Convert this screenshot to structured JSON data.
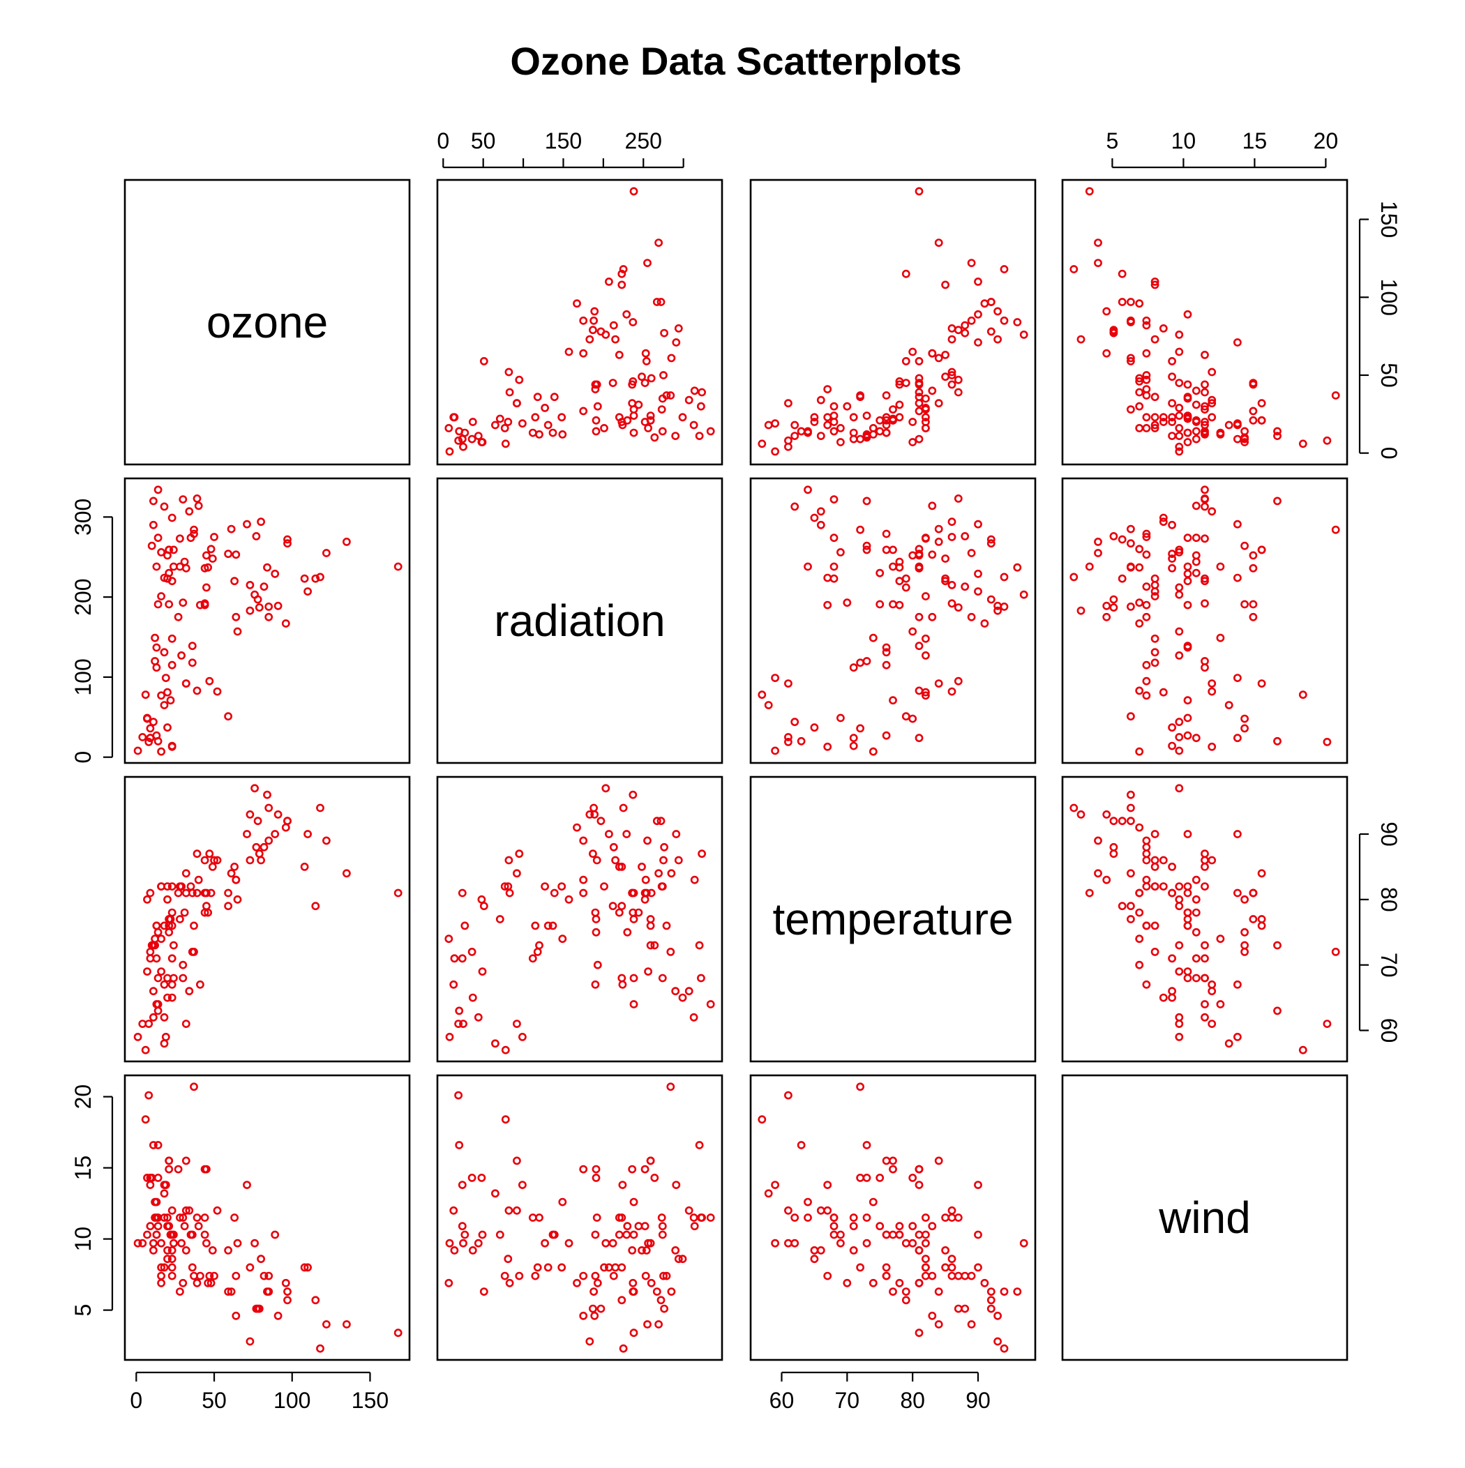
{
  "chart_data": {
    "type": "scatter",
    "title": "Ozone Data Scatterplots",
    "point_color": "#e8000b",
    "marker": "open-circle",
    "variables": [
      {
        "name": "ozone",
        "range": [
          0,
          168
        ],
        "ticks": [
          0,
          50,
          100,
          150
        ],
        "tick_labels": [
          "0",
          "50",
          "100",
          "150"
        ]
      },
      {
        "name": "radiation",
        "range": [
          7,
          334
        ],
        "ticks": [
          0,
          50,
          100,
          150,
          200,
          250,
          300
        ],
        "tick_labels": [
          "0",
          "50",
          "",
          "150",
          "",
          "250",
          ""
        ],
        "tick_labels_left": [
          "0",
          "100",
          "200",
          "300"
        ],
        "tick_values_left": [
          0,
          100,
          200,
          300
        ]
      },
      {
        "name": "temperature",
        "range": [
          57,
          97
        ],
        "ticks": [
          60,
          70,
          80,
          90
        ],
        "tick_labels": [
          "60",
          "70",
          "80",
          "90"
        ]
      },
      {
        "name": "wind",
        "range": [
          2.3,
          20.7
        ],
        "ticks": [
          5,
          10,
          15,
          20
        ],
        "tick_labels": [
          "5",
          "10",
          "15",
          "20"
        ]
      }
    ],
    "series": [
      {
        "columns": [
          "ozone",
          "radiation",
          "temperature",
          "wind"
        ],
        "rows": [
          [
            41,
            190,
            67,
            7.4
          ],
          [
            36,
            118,
            72,
            8.0
          ],
          [
            12,
            149,
            74,
            12.6
          ],
          [
            18,
            313,
            62,
            11.5
          ],
          [
            23,
            299,
            65,
            8.6
          ],
          [
            19,
            99,
            59,
            13.8
          ],
          [
            8,
            19,
            61,
            20.1
          ],
          [
            16,
            256,
            69,
            9.7
          ],
          [
            11,
            290,
            66,
            9.2
          ],
          [
            14,
            274,
            68,
            10.9
          ],
          [
            18,
            65,
            58,
            13.2
          ],
          [
            14,
            334,
            64,
            11.5
          ],
          [
            34,
            307,
            66,
            12.0
          ],
          [
            6,
            78,
            57,
            18.4
          ],
          [
            30,
            322,
            68,
            11.5
          ],
          [
            11,
            44,
            62,
            9.7
          ],
          [
            1,
            8,
            59,
            9.7
          ],
          [
            11,
            320,
            73,
            16.6
          ],
          [
            4,
            25,
            61,
            9.7
          ],
          [
            32,
            92,
            61,
            12.0
          ],
          [
            23,
            13,
            67,
            12.0
          ],
          [
            45,
            252,
            81,
            14.9
          ],
          [
            115,
            223,
            79,
            5.7
          ],
          [
            37,
            279,
            76,
            7.4
          ],
          [
            29,
            127,
            82,
            9.7
          ],
          [
            71,
            291,
            90,
            13.8
          ],
          [
            39,
            323,
            87,
            11.5
          ],
          [
            23,
            148,
            82,
            8.0
          ],
          [
            21,
            191,
            77,
            14.9
          ],
          [
            37,
            284,
            72,
            20.7
          ],
          [
            20,
            37,
            65,
            9.2
          ],
          [
            12,
            120,
            73,
            11.5
          ],
          [
            13,
            137,
            76,
            10.3
          ],
          [
            135,
            269,
            84,
            4.0
          ],
          [
            49,
            248,
            85,
            9.2
          ],
          [
            32,
            236,
            81,
            9.2
          ],
          [
            64,
            175,
            83,
            4.6
          ],
          [
            40,
            314,
            83,
            10.9
          ],
          [
            77,
            276,
            88,
            5.1
          ],
          [
            97,
            267,
            92,
            6.3
          ],
          [
            97,
            272,
            92,
            5.7
          ],
          [
            85,
            175,
            89,
            7.4
          ],
          [
            10,
            264,
            73,
            14.3
          ],
          [
            27,
            175,
            81,
            14.9
          ],
          [
            7,
            48,
            80,
            14.3
          ],
          [
            48,
            260,
            81,
            6.9
          ],
          [
            35,
            274,
            82,
            10.3
          ],
          [
            61,
            285,
            84,
            6.3
          ],
          [
            79,
            187,
            87,
            5.1
          ],
          [
            63,
            220,
            85,
            11.5
          ],
          [
            16,
            7,
            74,
            6.9
          ],
          [
            80,
            294,
            86,
            8.6
          ],
          [
            108,
            223,
            85,
            8.0
          ],
          [
            20,
            81,
            82,
            8.6
          ],
          [
            52,
            82,
            86,
            12.0
          ],
          [
            82,
            213,
            88,
            7.4
          ],
          [
            50,
            275,
            86,
            7.4
          ],
          [
            64,
            253,
            83,
            7.4
          ],
          [
            59,
            254,
            81,
            9.2
          ],
          [
            39,
            83,
            81,
            6.9
          ],
          [
            9,
            24,
            81,
            13.8
          ],
          [
            16,
            77,
            82,
            7.4
          ],
          [
            122,
            255,
            89,
            4.0
          ],
          [
            89,
            229,
            90,
            10.3
          ],
          [
            110,
            207,
            90,
            8.0
          ],
          [
            44,
            192,
            86,
            11.5
          ],
          [
            28,
            273,
            82,
            11.5
          ],
          [
            65,
            157,
            80,
            9.7
          ],
          [
            22,
            71,
            77,
            10.3
          ],
          [
            59,
            51,
            79,
            6.3
          ],
          [
            23,
            115,
            76,
            7.4
          ],
          [
            31,
            244,
            78,
            10.9
          ],
          [
            44,
            190,
            78,
            10.3
          ],
          [
            21,
            259,
            77,
            15.5
          ],
          [
            9,
            36,
            72,
            14.3
          ],
          [
            45,
            212,
            79,
            9.7
          ],
          [
            168,
            238,
            81,
            3.4
          ],
          [
            73,
            215,
            86,
            8.0
          ],
          [
            76,
            203,
            97,
            9.7
          ],
          [
            118,
            225,
            94,
            2.3
          ],
          [
            84,
            237,
            96,
            6.3
          ],
          [
            85,
            188,
            94,
            6.3
          ],
          [
            96,
            167,
            91,
            6.9
          ],
          [
            78,
            197,
            92,
            5.1
          ],
          [
            73,
            183,
            93,
            2.8
          ],
          [
            91,
            189,
            93,
            4.6
          ],
          [
            47,
            95,
            87,
            7.4
          ],
          [
            32,
            92,
            84,
            15.5
          ],
          [
            20,
            252,
            80,
            10.9
          ],
          [
            23,
            220,
            78,
            10.3
          ],
          [
            21,
            230,
            75,
            10.9
          ],
          [
            24,
            259,
            73,
            9.7
          ],
          [
            44,
            236,
            81,
            14.9
          ],
          [
            21,
            259,
            76,
            15.5
          ],
          [
            28,
            238,
            77,
            6.3
          ],
          [
            9,
            24,
            71,
            10.9
          ],
          [
            13,
            112,
            71,
            11.5
          ],
          [
            46,
            237,
            78,
            6.9
          ],
          [
            18,
            224,
            67,
            13.8
          ],
          [
            13,
            27,
            76,
            10.3
          ],
          [
            24,
            238,
            68,
            10.3
          ],
          [
            16,
            201,
            82,
            8.0
          ],
          [
            13,
            238,
            64,
            12.6
          ],
          [
            23,
            14,
            71,
            9.2
          ],
          [
            36,
            139,
            81,
            10.3
          ],
          [
            7,
            49,
            69,
            10.3
          ],
          [
            14,
            20,
            63,
            16.6
          ],
          [
            30,
            193,
            70,
            6.9
          ],
          [
            14,
            191,
            75,
            14.3
          ],
          [
            18,
            131,
            76,
            8.0
          ],
          [
            20,
            223,
            68,
            11.5
          ]
        ]
      }
    ]
  }
}
